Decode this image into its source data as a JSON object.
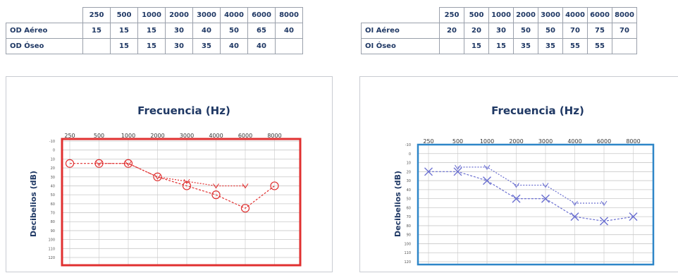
{
  "tables": {
    "od": {
      "frequencies": [
        "250",
        "500",
        "1000",
        "2000",
        "3000",
        "4000",
        "6000",
        "8000"
      ],
      "rows": [
        {
          "label": "OD Aéreo",
          "values": [
            "15",
            "15",
            "15",
            "30",
            "40",
            "50",
            "65",
            "40"
          ]
        },
        {
          "label": "OD Óseo",
          "values": [
            "",
            "15",
            "15",
            "30",
            "35",
            "40",
            "40",
            ""
          ]
        }
      ]
    },
    "oi": {
      "frequencies": [
        "250",
        "500",
        "1000",
        "2000",
        "3000",
        "4000",
        "6000",
        "8000"
      ],
      "rows": [
        {
          "label": "OI Aéreo",
          "values": [
            "20",
            "20",
            "30",
            "50",
            "50",
            "70",
            "75",
            "70"
          ]
        },
        {
          "label": "OI Óseo",
          "values": [
            "",
            "15",
            "15",
            "35",
            "35",
            "55",
            "55",
            ""
          ]
        }
      ]
    }
  },
  "colors": {
    "od": "#e03030",
    "oi": "#6a6fd0",
    "oi_frame": "#2e86c8",
    "text": "#1f3864",
    "grid": "#c8c8c8"
  },
  "chart_data": [
    {
      "type": "line",
      "title": "Frecuencia (Hz)",
      "xlabel": "Frecuencia (Hz)",
      "ylabel": "Decibelios (dB)",
      "categories": [
        "250",
        "500",
        "1000",
        "2000",
        "3000",
        "4000",
        "6000",
        "8000"
      ],
      "yticks": [
        "-10",
        "0",
        "10",
        "20",
        "30",
        "40",
        "50",
        "60",
        "70",
        "80",
        "90",
        "100",
        "110",
        "120"
      ],
      "ylim": [
        -10,
        120
      ],
      "y_inverted": true,
      "grid": true,
      "marker_air": "circle",
      "series": [
        {
          "values": [
            15,
            15,
            15,
            30,
            40,
            50,
            65,
            40
          ]
        },
        {
          "values": [
            null,
            15,
            15,
            30,
            35,
            40,
            40,
            null
          ]
        }
      ]
    },
    {
      "type": "line",
      "title": "Frecuencia (Hz)",
      "xlabel": "Frecuencia (Hz)",
      "ylabel": "Decibelios (dB)",
      "categories": [
        "250",
        "500",
        "1000",
        "2000",
        "3000",
        "4000",
        "6000",
        "8000"
      ],
      "yticks": [
        "-10",
        "0",
        "10",
        "20",
        "30",
        "40",
        "50",
        "60",
        "70",
        "80",
        "90",
        "100",
        "110",
        "120"
      ],
      "ylim": [
        -10,
        120
      ],
      "y_inverted": true,
      "grid": true,
      "marker_air": "x",
      "series": [
        {
          "values": [
            20,
            20,
            30,
            50,
            50,
            70,
            75,
            70
          ]
        },
        {
          "values": [
            null,
            15,
            15,
            35,
            35,
            55,
            55,
            null
          ]
        }
      ]
    }
  ]
}
